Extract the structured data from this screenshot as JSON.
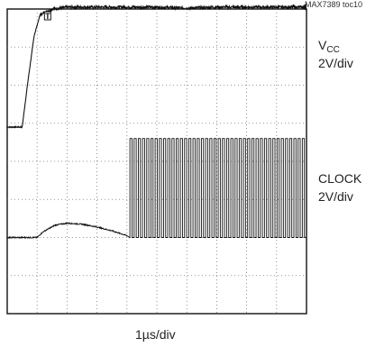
{
  "chart_data": {
    "type": "line",
    "title": "",
    "figure_id": "MAX7389 toc10",
    "xlabel": "1µs/div",
    "ylabel": "",
    "grid": true,
    "grid_divisions": {
      "x": 10,
      "y": 8
    },
    "trigger_marker": "T",
    "series": [
      {
        "name": "VCC",
        "name_main": "V",
        "name_sub": "CC",
        "scale": "2V/div",
        "color": "#111111",
        "x": [
          0.0,
          0.3,
          0.5,
          0.7,
          0.9,
          1.1,
          1.5,
          2.0,
          2.5,
          3.0,
          4.0,
          5.0,
          6.0,
          7.0,
          8.0,
          10.0
        ],
        "y": [
          0.0,
          0.0,
          0.0,
          2.5,
          4.8,
          5.9,
          6.2,
          6.3,
          6.3,
          6.3,
          6.3,
          6.3,
          6.25,
          6.3,
          6.3,
          6.3
        ]
      },
      {
        "name": "CLOCK",
        "scale": "2V/div",
        "color": "#111111",
        "x": [
          0.0,
          1.0,
          1.2,
          1.6,
          2.0,
          2.5,
          3.0,
          3.5,
          4.0,
          4.1
        ],
        "y": [
          0.0,
          0.0,
          0.3,
          0.65,
          0.75,
          0.7,
          0.55,
          0.35,
          0.1,
          0.0
        ],
        "oscillation": {
          "start_x": 4.1,
          "end_x": 10.0,
          "low": 0.0,
          "high": 5.2,
          "cycles": 42
        }
      }
    ]
  }
}
